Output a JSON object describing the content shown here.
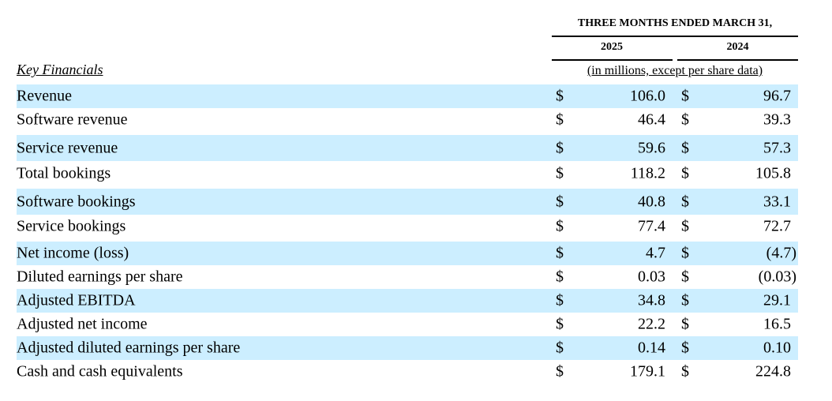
{
  "header": {
    "period": "THREE MONTHS ENDED MARCH 31,",
    "year_1": "2025",
    "year_2": "2024",
    "units": "(in millions, except per share data)"
  },
  "section_title": "Key Financials",
  "currency_symbol": "$",
  "rows": [
    {
      "label": "Revenue",
      "v2025": "106.0",
      "v2024": "96.7"
    },
    {
      "label": "Software revenue",
      "v2025": "46.4",
      "v2024": "39.3"
    },
    {
      "label": "Service revenue",
      "v2025": "59.6",
      "v2024": "57.3"
    },
    {
      "label": "Total bookings",
      "v2025": "118.2",
      "v2024": "105.8"
    },
    {
      "label": "Software bookings",
      "v2025": "40.8",
      "v2024": "33.1"
    },
    {
      "label": "Service bookings",
      "v2025": "77.4",
      "v2024": "72.7"
    },
    {
      "label": "Net income (loss)",
      "v2025": "4.7",
      "v2024": "(4.7)"
    },
    {
      "label": "Diluted earnings per share",
      "v2025": "0.03",
      "v2024": "(0.03)"
    },
    {
      "label": "Adjusted EBITDA",
      "v2025": "34.8",
      "v2024": "29.1"
    },
    {
      "label": "Adjusted net income",
      "v2025": "22.2",
      "v2024": "16.5"
    },
    {
      "label": "Adjusted diluted earnings per share",
      "v2025": "0.14",
      "v2024": "0.10"
    },
    {
      "label": "Cash and cash equivalents",
      "v2025": "179.1",
      "v2024": "224.8"
    }
  ],
  "colors": {
    "row_shade": "#cceeff"
  }
}
